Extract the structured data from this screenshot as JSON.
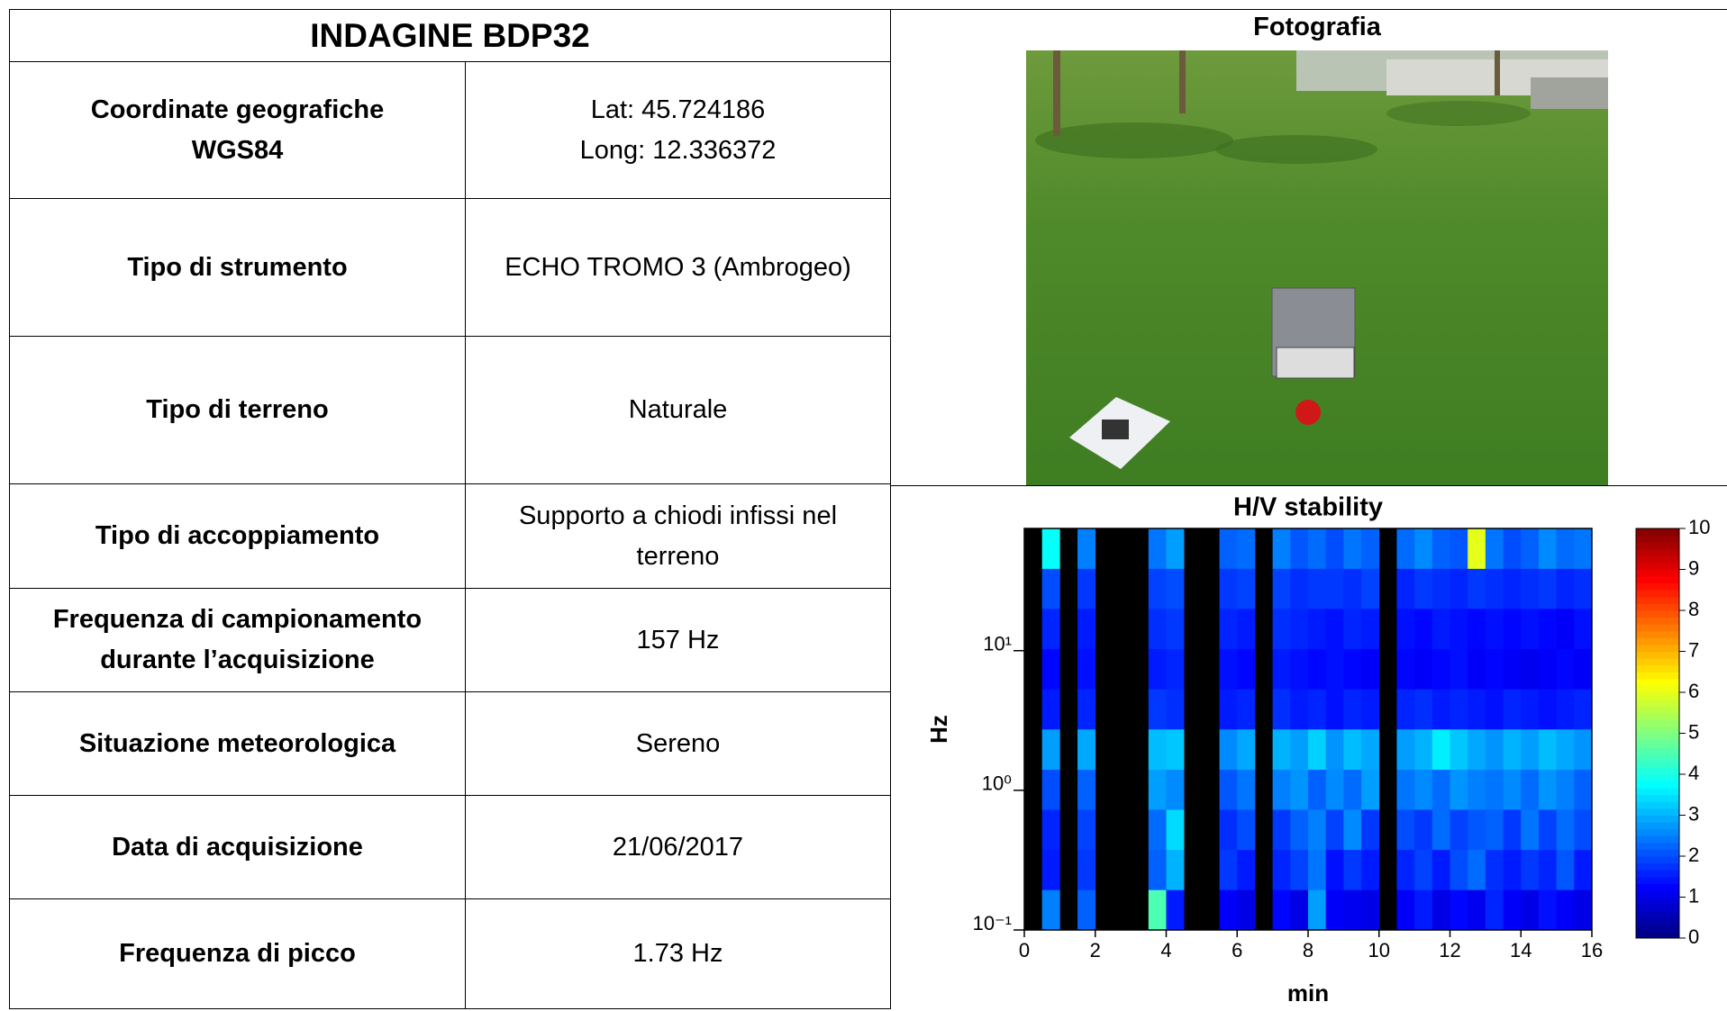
{
  "table": {
    "title": "INDAGINE BDP32",
    "rows": [
      [
        [
          "Coordinate geografiche",
          "WGS84"
        ],
        [
          "Lat: 45.724186",
          "Long: 12.336372"
        ]
      ],
      [
        [
          "Tipo di strumento"
        ],
        [
          "ECHO TROMO 3 (Ambrogeo)"
        ]
      ],
      [
        [
          "Tipo di terreno"
        ],
        [
          "Naturale"
        ]
      ],
      [
        [
          "Tipo di accoppiamento"
        ],
        [
          "Supporto a chiodi infissi nel",
          "terreno"
        ]
      ],
      [
        [
          "Frequenza di campionamento",
          "durante l’acquisizione"
        ],
        [
          "157 Hz"
        ]
      ],
      [
        [
          "Situazione meteorologica"
        ],
        [
          "Sereno"
        ]
      ],
      [
        [
          "Data di acquisizione"
        ],
        [
          "21/06/2017"
        ]
      ],
      [
        [
          "Frequenza di picco"
        ],
        [
          "1.73 Hz"
        ]
      ]
    ]
  },
  "photo": {
    "title": "Fotografia"
  },
  "chart_data": {
    "type": "heatmap",
    "title": "H/V stability",
    "x_label": "min",
    "y_label": "Hz",
    "xlim": [
      0,
      16
    ],
    "xticks": [
      0,
      2,
      4,
      6,
      8,
      10,
      12,
      14,
      16
    ],
    "ylim": [
      0.1,
      75
    ],
    "log_y": true,
    "yticks": [
      {
        "value": 0.1,
        "label": "10⁻¹"
      },
      {
        "value": 1,
        "label": "10⁰"
      },
      {
        "value": 10,
        "label": "10¹"
      }
    ],
    "x_bins": [
      0,
      0.5,
      1,
      1.5,
      2,
      2.5,
      3,
      3.5,
      4,
      4.5,
      5,
      5.5,
      6,
      6.5,
      7,
      7.5,
      8,
      8.5,
      9,
      9.5,
      10,
      10.5,
      11,
      11.5,
      12,
      12.5,
      13,
      13.5,
      14,
      14.5,
      15,
      15.5,
      16
    ],
    "y_bins": [
      0.1,
      0.194,
      0.376,
      0.729,
      1.41,
      2.74,
      5.31,
      10.3,
      20.0,
      38.7,
      75
    ],
    "z": [
      [
        null,
        2.5,
        null,
        2.2,
        null,
        null,
        null,
        4.5,
        1.5,
        null,
        null,
        1.2,
        1.0,
        null,
        1.3,
        1.0,
        2.8,
        1.2,
        1.1,
        1.0,
        null,
        1.2,
        1.5,
        1.0,
        1.3,
        1.1,
        1.6,
        1.2,
        1.0,
        1.4,
        1.2,
        1.0
      ],
      [
        null,
        1.5,
        null,
        1.8,
        null,
        null,
        null,
        2.2,
        3.0,
        null,
        null,
        1.8,
        1.5,
        null,
        1.6,
        1.9,
        2.4,
        1.4,
        1.8,
        1.5,
        null,
        1.6,
        1.9,
        1.5,
        2.0,
        2.3,
        1.7,
        1.5,
        1.8,
        1.6,
        2.1,
        1.5
      ],
      [
        null,
        1.6,
        null,
        1.9,
        null,
        null,
        null,
        2.3,
        3.4,
        null,
        null,
        1.7,
        2.0,
        null,
        1.8,
        2.2,
        2.5,
        1.9,
        2.6,
        1.8,
        null,
        2.0,
        1.8,
        2.3,
        1.9,
        2.1,
        2.2,
        1.8,
        2.4,
        1.9,
        2.3,
        2.0
      ],
      [
        null,
        2.0,
        null,
        2.2,
        null,
        null,
        null,
        2.8,
        2.6,
        null,
        null,
        2.1,
        2.4,
        null,
        2.5,
        2.7,
        2.2,
        2.6,
        2.3,
        2.8,
        null,
        2.4,
        2.6,
        2.3,
        2.7,
        2.5,
        2.4,
        2.6,
        2.3,
        2.7,
        2.5,
        2.2
      ],
      [
        null,
        2.8,
        null,
        2.9,
        null,
        null,
        null,
        3.1,
        3.2,
        null,
        null,
        2.6,
        2.9,
        null,
        3.0,
        2.8,
        3.3,
        2.7,
        3.1,
        2.9,
        null,
        2.8,
        3.0,
        3.6,
        3.2,
        2.9,
        2.7,
        3.0,
        2.8,
        3.1,
        2.9,
        2.7
      ],
      [
        null,
        1.5,
        null,
        1.6,
        null,
        null,
        null,
        1.8,
        1.7,
        null,
        null,
        1.5,
        1.6,
        null,
        1.7,
        1.5,
        1.6,
        1.4,
        1.6,
        1.5,
        null,
        1.6,
        1.7,
        1.5,
        1.6,
        1.5,
        1.4,
        1.6,
        1.5,
        1.4,
        1.5,
        1.6
      ],
      [
        null,
        1.3,
        null,
        1.4,
        null,
        null,
        null,
        1.5,
        1.6,
        null,
        null,
        1.4,
        1.3,
        null,
        1.5,
        1.4,
        1.3,
        1.4,
        1.3,
        1.2,
        null,
        1.3,
        1.2,
        1.3,
        1.4,
        1.2,
        1.3,
        1.2,
        1.1,
        1.2,
        1.3,
        1.2
      ],
      [
        null,
        1.6,
        null,
        1.5,
        null,
        null,
        null,
        1.7,
        1.8,
        null,
        null,
        1.6,
        1.5,
        null,
        1.7,
        1.6,
        1.5,
        1.4,
        1.6,
        1.5,
        null,
        1.4,
        1.3,
        1.5,
        1.4,
        1.3,
        1.4,
        1.3,
        1.4,
        1.3,
        1.2,
        1.4
      ],
      [
        null,
        2.0,
        null,
        1.8,
        null,
        null,
        null,
        1.9,
        2.0,
        null,
        null,
        1.8,
        1.9,
        null,
        1.9,
        1.7,
        1.8,
        1.8,
        1.7,
        1.9,
        null,
        1.6,
        1.8,
        1.7,
        1.6,
        1.8,
        1.7,
        1.6,
        1.7,
        1.8,
        1.6,
        1.7
      ],
      [
        null,
        3.8,
        null,
        2.5,
        null,
        null,
        null,
        2.4,
        2.8,
        null,
        null,
        2.2,
        2.3,
        null,
        2.5,
        2.1,
        2.3,
        2.0,
        2.4,
        2.2,
        null,
        2.3,
        2.6,
        2.2,
        2.1,
        6.0,
        2.4,
        2.0,
        2.2,
        2.6,
        2.3,
        2.4
      ]
    ],
    "colormap": "jet",
    "clim": [
      0,
      10
    ],
    "cticks": [
      0,
      1,
      2,
      3,
      4,
      5,
      6,
      7,
      8,
      9,
      10
    ]
  }
}
